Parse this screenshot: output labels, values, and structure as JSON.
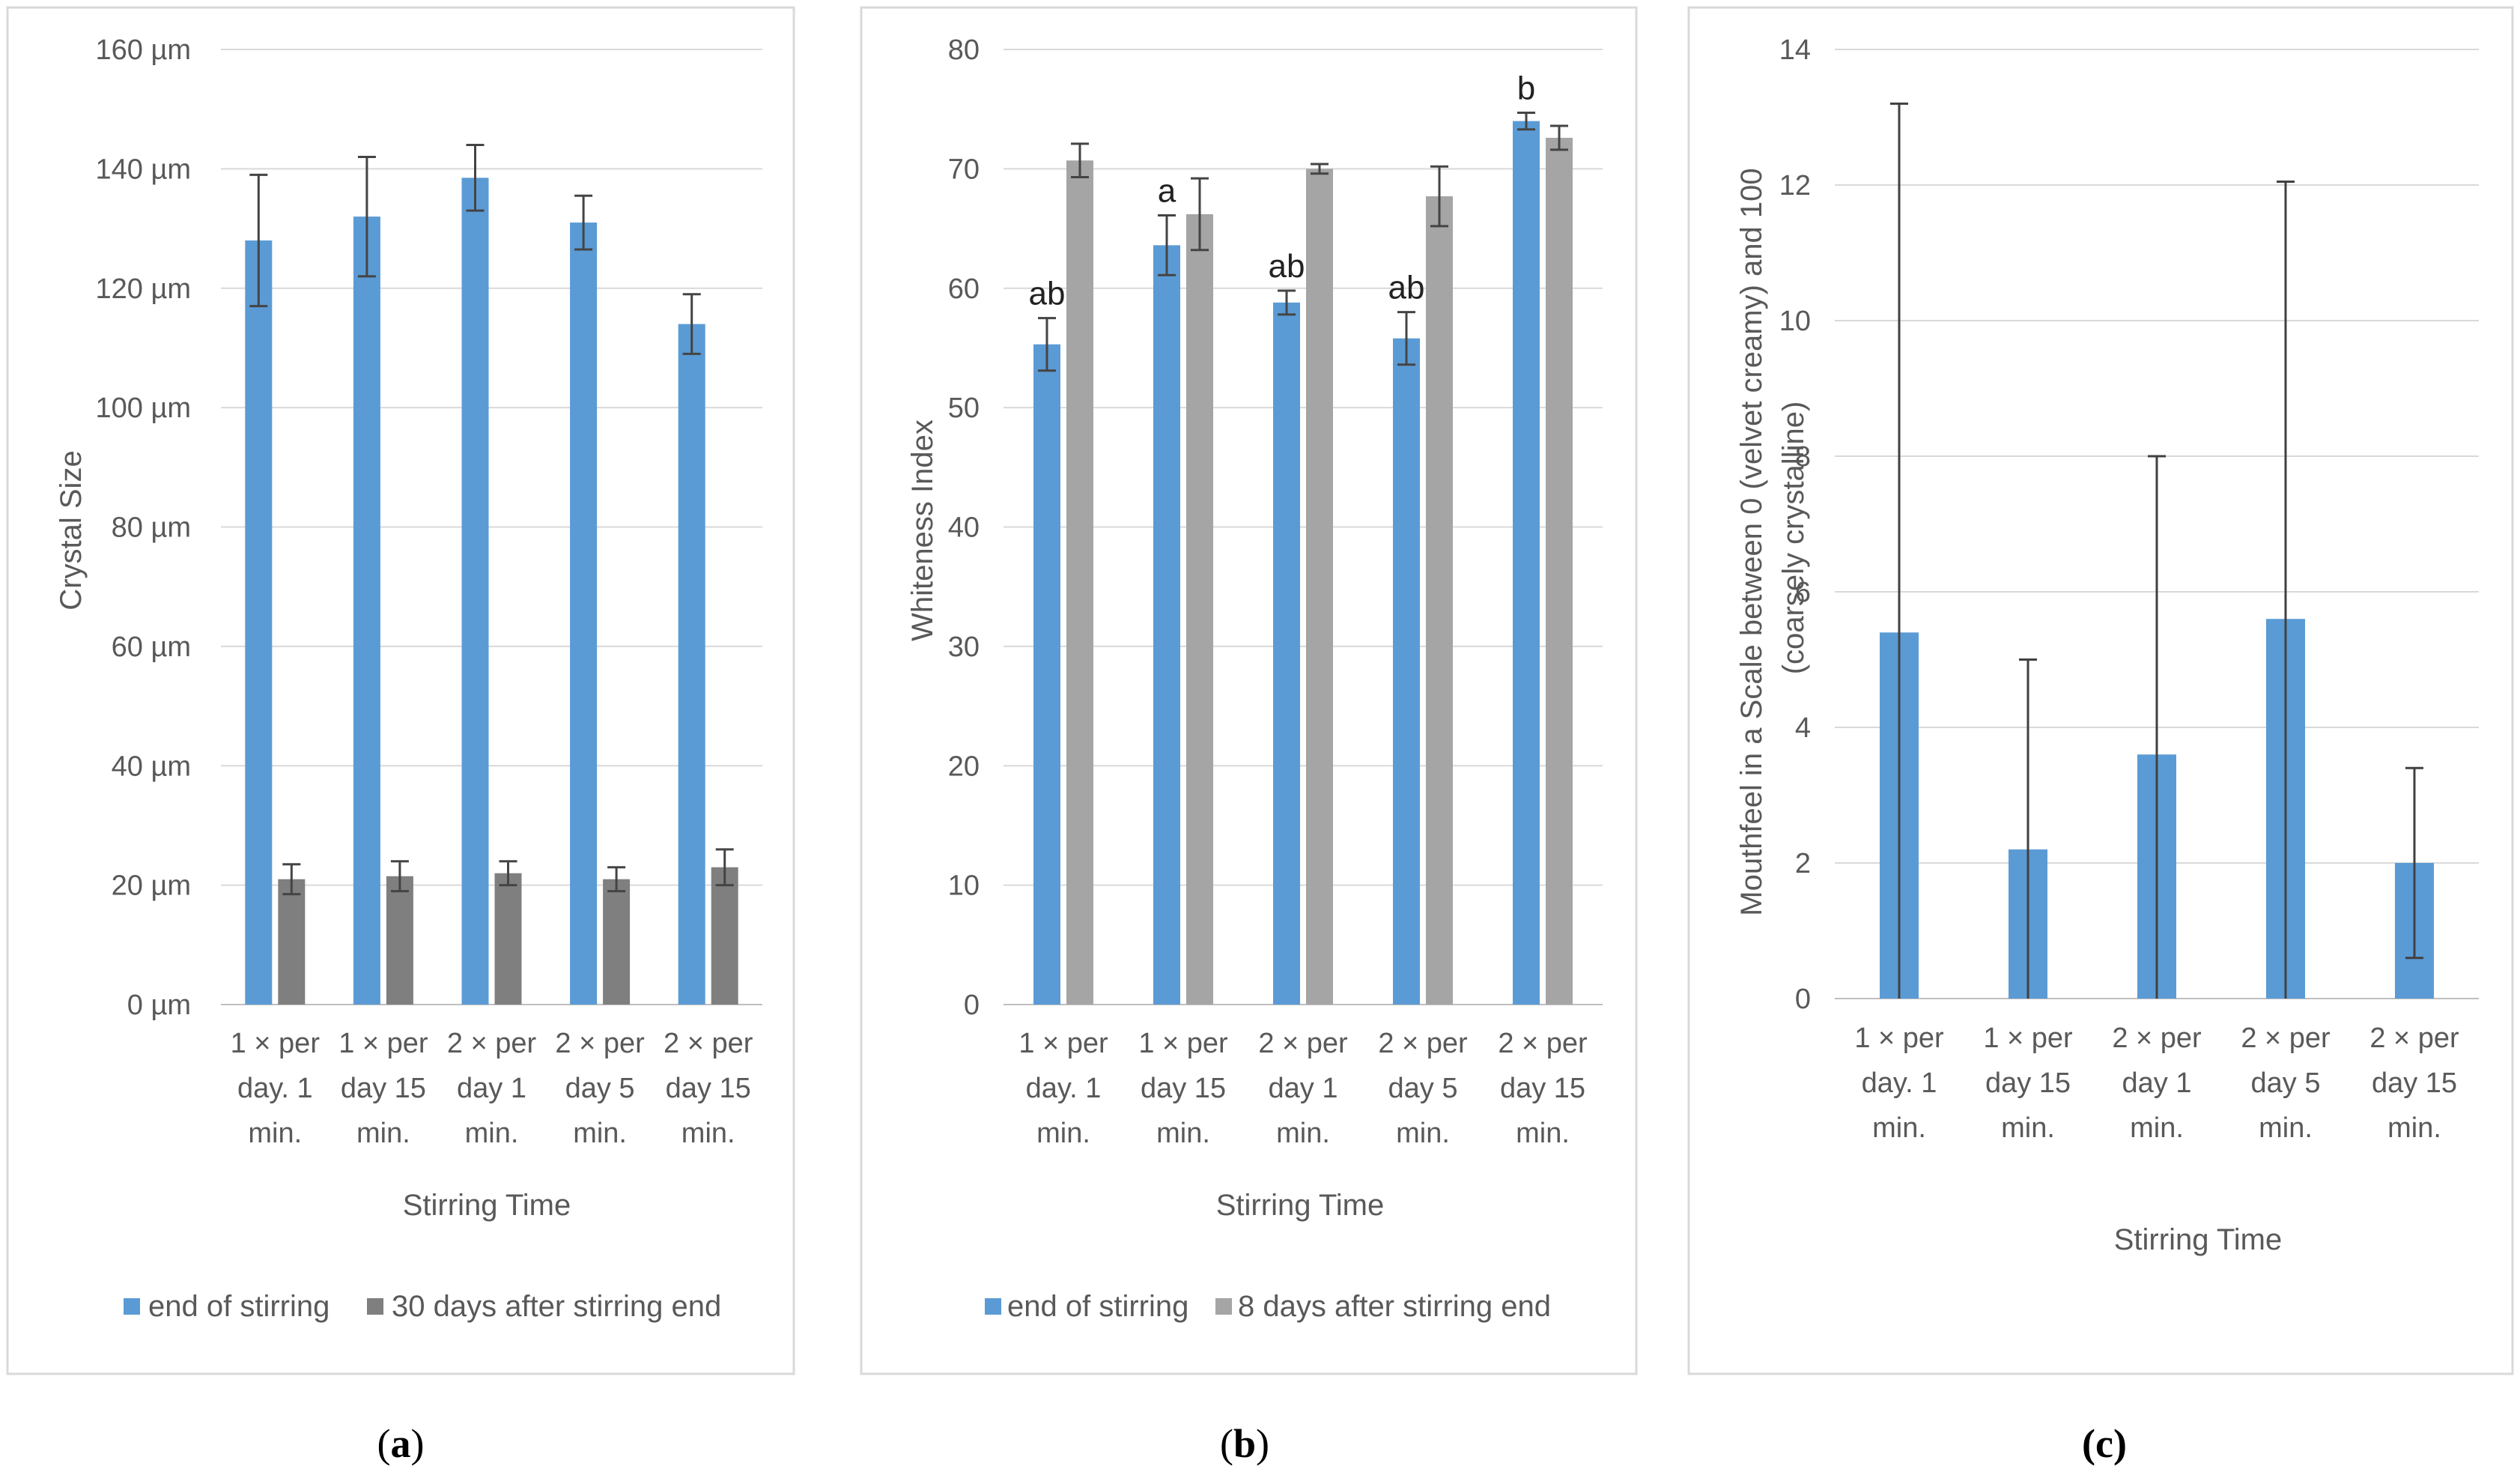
{
  "chart_data": [
    {
      "type": "bar",
      "panel_label": "a",
      "title": "",
      "xlabel": "Stirring Time",
      "ylabel": "Crystal Size",
      "ylim": [
        0,
        160
      ],
      "yticks": [
        "0 µm",
        "20 µm",
        "40 µm",
        "60 µm",
        "80 µm",
        "100 µm",
        "120 µm",
        "140 µm",
        "160 µm"
      ],
      "categories": [
        [
          "1 × per",
          "day. 1",
          "min."
        ],
        [
          "1 × per",
          "day 15",
          "min."
        ],
        [
          "2 × per",
          "day 1",
          "min."
        ],
        [
          "2 × per",
          "day 5",
          "min."
        ],
        [
          "2 × per",
          "day 15",
          "min."
        ]
      ],
      "series": [
        {
          "name": "end of stirring",
          "color": "#5B9BD5",
          "values": [
            128,
            132,
            138.5,
            131,
            114
          ],
          "errors": [
            11,
            10,
            5.5,
            4.5,
            5
          ]
        },
        {
          "name": "30 days after stirring end",
          "color": "#7F7F7F",
          "values": [
            21,
            21.5,
            22,
            21,
            23
          ],
          "errors": [
            2.5,
            2.5,
            2,
            2,
            3
          ]
        }
      ],
      "annotations": [],
      "legend": "bottom"
    },
    {
      "type": "bar",
      "panel_label": "b",
      "title": "",
      "xlabel": "Stirring Time",
      "ylabel": "Whiteness Index",
      "ylim": [
        0,
        80
      ],
      "yticks": [
        "0",
        "10",
        "20",
        "30",
        "40",
        "50",
        "60",
        "70",
        "80"
      ],
      "categories": [
        [
          "1 × per",
          "day. 1",
          "min."
        ],
        [
          "1 × per",
          "day 15",
          "min."
        ],
        [
          "2 × per",
          "day 1",
          "min."
        ],
        [
          "2 × per",
          "day 5",
          "min."
        ],
        [
          "2 × per",
          "day 15",
          "min."
        ]
      ],
      "series": [
        {
          "name": "end of stirring",
          "color": "#5B9BD5",
          "values": [
            55.3,
            63.6,
            58.8,
            55.8,
            74
          ],
          "errors": [
            2.2,
            2.5,
            1,
            2.2,
            0.7
          ]
        },
        {
          "name": "8 days after stirring end",
          "color": "#A5A5A5",
          "values": [
            70.7,
            66.2,
            70,
            67.7,
            72.6
          ],
          "errors": [
            1.4,
            3,
            0.4,
            2.5,
            1
          ]
        }
      ],
      "annotations": [
        "ab",
        "a",
        "ab",
        "ab",
        "b"
      ],
      "legend": "bottom"
    },
    {
      "type": "bar",
      "panel_label": "(c)",
      "title": "",
      "xlabel": "Stirring Time",
      "ylabel_lines": [
        "Mouthfeel in a Scale between  0 (velvet creamy) and 100",
        "(coarsely crystalline)"
      ],
      "ylim": [
        0,
        14
      ],
      "yticks": [
        "0",
        "2",
        "4",
        "6",
        "8",
        "10",
        "12",
        "14"
      ],
      "categories": [
        [
          "1 × per",
          "day. 1",
          "min."
        ],
        [
          "1 × per",
          "day 15",
          "min."
        ],
        [
          "2 × per",
          "day 1",
          "min."
        ],
        [
          "2 × per",
          "day 5",
          "min."
        ],
        [
          "2 × per",
          "day 15",
          "min."
        ]
      ],
      "series": [
        {
          "name": "Mouthfeel",
          "color": "#5B9BD5",
          "values": [
            5.4,
            2.2,
            3.6,
            5.6,
            2
          ],
          "errors": [
            7.8,
            2.8,
            4.4,
            6.45,
            1.4
          ],
          "error_mode": "symmetric_clipped"
        }
      ],
      "annotations": [],
      "legend": "none"
    }
  ]
}
